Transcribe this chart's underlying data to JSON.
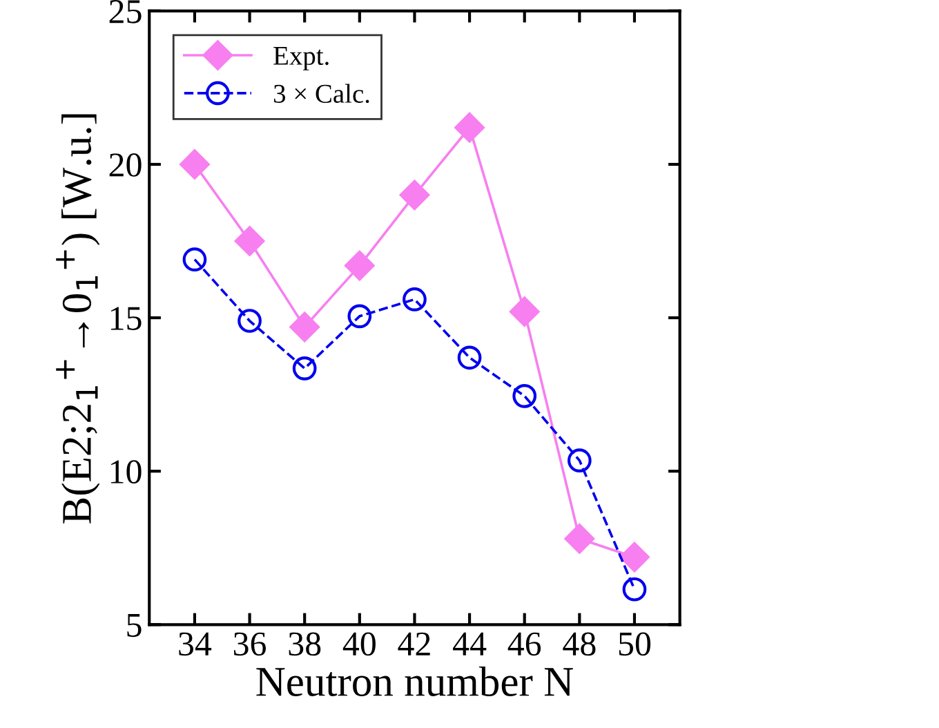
{
  "chart_data": {
    "type": "line",
    "xlabel": "Neutron number N",
    "ylabel": "B(E2;2$_{1}$$^{+}$→0$_{1}$$^{+}$) [W.u.]",
    "x": [
      34,
      36,
      38,
      40,
      42,
      44,
      46,
      48,
      50
    ],
    "series": [
      {
        "name": "Expt.",
        "color": "#f77ff0",
        "marker": "diamond",
        "line_style": "solid",
        "values": [
          20.0,
          17.5,
          14.7,
          16.7,
          19.0,
          21.2,
          15.2,
          7.8,
          7.2
        ]
      },
      {
        "name": "3 × Calc.",
        "color": "#0000ee",
        "marker": "circle",
        "line_style": "dashed",
        "values": [
          16.9,
          14.9,
          13.35,
          15.05,
          15.6,
          13.7,
          12.45,
          10.35,
          6.15
        ]
      }
    ],
    "xlim": [
      32.35,
      51.65
    ],
    "xticks": [
      34,
      36,
      38,
      40,
      42,
      44,
      46,
      48,
      50
    ],
    "ylim": [
      5,
      25
    ],
    "yticks": [
      5,
      10,
      15,
      20,
      25
    ],
    "grid": false,
    "legend": "top left"
  }
}
